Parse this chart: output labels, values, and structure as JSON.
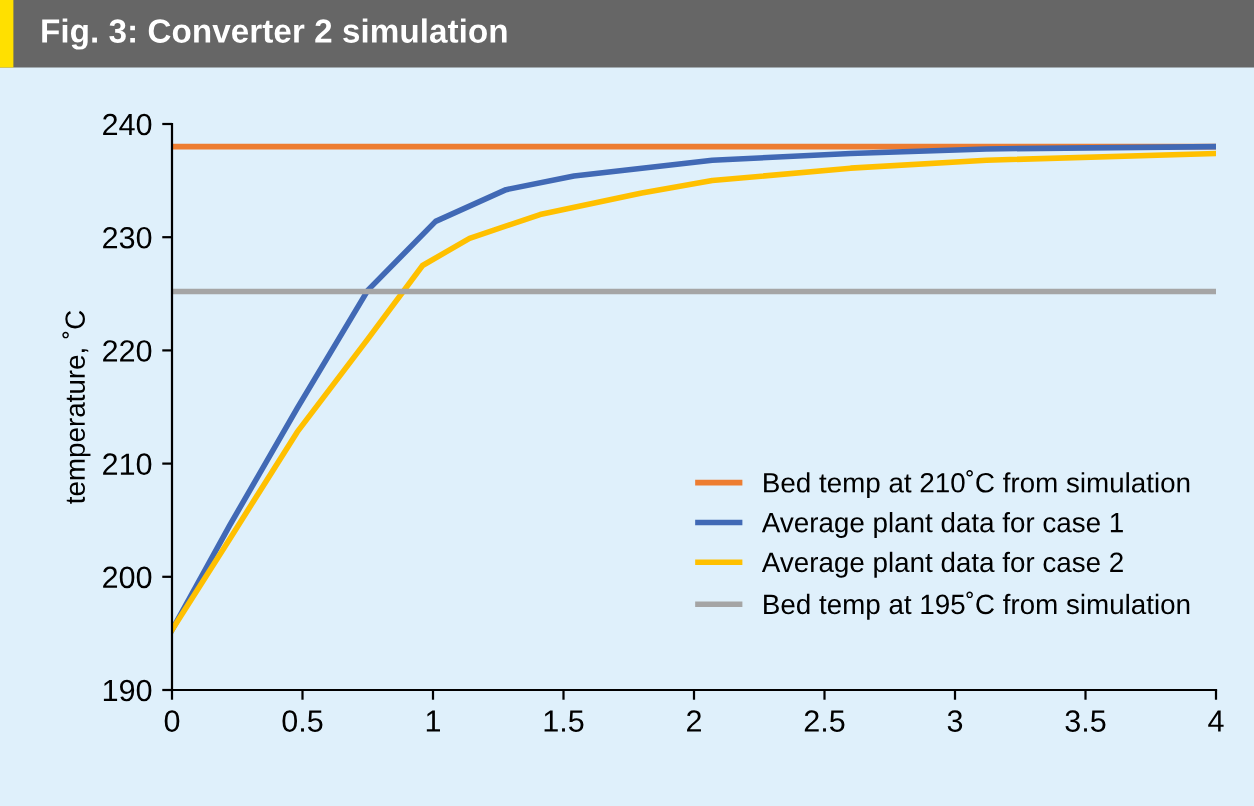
{
  "chart_data": {
    "type": "line",
    "title": "Fig. 3: Converter 2 simulation",
    "ylabel": "temperature, ˚C",
    "xlim": [
      0,
      4
    ],
    "xticks": [
      0,
      0.5,
      1,
      1.5,
      2,
      2.5,
      3,
      3.5,
      4
    ],
    "ylim": [
      190,
      240
    ],
    "yticks": [
      190,
      200,
      210,
      220,
      230,
      240
    ],
    "grid": false,
    "legend": "bottom right",
    "marker": "none",
    "line_style": "solid",
    "series": [
      {
        "name": "Bed temp at 210˚C from simulation",
        "color": "#ed7d31",
        "x": [
          0,
          4
        ],
        "values": [
          238,
          238
        ]
      },
      {
        "name": "Average plant data for case 1",
        "color": "#4169b5",
        "x": [
          0,
          0.22,
          0.48,
          0.75,
          1.01,
          1.28,
          1.54,
          2.07,
          2.6,
          3.12,
          4
        ],
        "values": [
          195.3,
          204.5,
          214.9,
          225.3,
          231.4,
          234.2,
          235.4,
          236.8,
          237.4,
          237.8,
          238
        ]
      },
      {
        "name": "Average plant data for case 2",
        "color": "#ffc000",
        "x": [
          0,
          0.22,
          0.48,
          0.75,
          0.96,
          1.14,
          1.41,
          1.8,
          2.07,
          2.6,
          3.12,
          4
        ],
        "values": [
          195.3,
          203.3,
          212.8,
          221,
          227.5,
          229.9,
          232,
          233.9,
          235,
          236.1,
          236.8,
          237.4
        ]
      },
      {
        "name": "Bed temp at 195˚C from simulation",
        "color": "#a5a5a5",
        "x": [
          0,
          4
        ],
        "values": [
          225.2,
          225.2
        ]
      }
    ]
  }
}
